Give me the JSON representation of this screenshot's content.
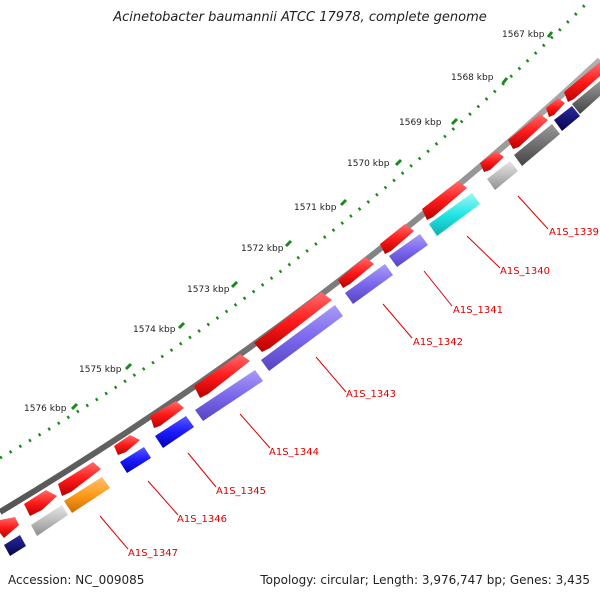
{
  "title": "Acinetobacter baumannii ATCC 17978, complete genome",
  "footer": {
    "accession": "Accession: NC_009085",
    "topology": "Topology: circular; Length: 3,976,747 bp; Genes: 3,435"
  },
  "scale_ticks": [
    {
      "label": "1567 kbp"
    },
    {
      "label": "1568 kbp"
    },
    {
      "label": "1569 kbp"
    },
    {
      "label": "1570 kbp"
    },
    {
      "label": "1571 kbp"
    },
    {
      "label": "1572 kbp"
    },
    {
      "label": "1573 kbp"
    },
    {
      "label": "1574 kbp"
    },
    {
      "label": "1575 kbp"
    },
    {
      "label": "1576 kbp"
    }
  ],
  "gene_labels": [
    "A1S_1339",
    "A1S_1340",
    "A1S_1341",
    "A1S_1342",
    "A1S_1343",
    "A1S_1344",
    "A1S_1345",
    "A1S_1346",
    "A1S_1347"
  ],
  "colors": {
    "cds": "#ff1a1a",
    "label": "#e00000",
    "backbone": "#8c8c8c",
    "ticks": "#1a8a1a",
    "purple": "#7b68ee",
    "blue": "#1a1aff",
    "navy": "#0a0a7a",
    "cyan": "#22e6e6",
    "orange": "#ff9a1a",
    "light_gray": "#bdbdbd",
    "dark_gray": "#6e6e6e"
  }
}
